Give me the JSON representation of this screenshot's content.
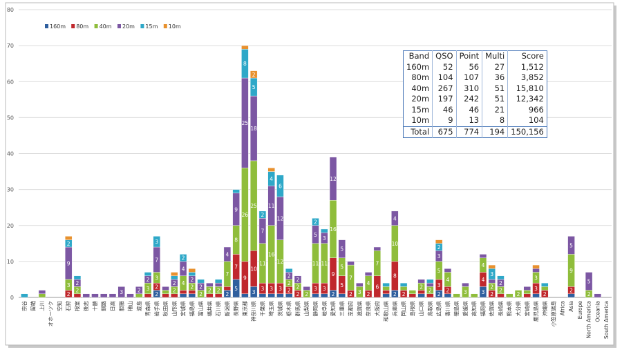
{
  "chart_data": {
    "type": "bar",
    "stacked": true,
    "ylim": [
      0,
      80
    ],
    "yticks": [
      0,
      10,
      20,
      30,
      40,
      50,
      60,
      70,
      80
    ],
    "grid": true,
    "legend_position": "top-left",
    "categories": [
      "宗谷",
      "留萌",
      "上川",
      "オホーツク",
      "空知",
      "石狩",
      "根室",
      "後志",
      "十勝",
      "釧路",
      "日高",
      "胆振",
      "檜山",
      "渡島",
      "青森県",
      "岩手県",
      "秋田県",
      "山形県",
      "宮城県",
      "福島県",
      "富山県",
      "福井県",
      "石川県",
      "新潟県",
      "長野県",
      "東京都",
      "神奈川県",
      "千葉県",
      "埼玉県",
      "茨城県",
      "栃木県",
      "群馬県",
      "山梨県",
      "静岡県",
      "岐阜県",
      "愛知県",
      "三重県",
      "京都府",
      "滋賀県",
      "奈良県",
      "大阪府",
      "和歌山県",
      "兵庫県",
      "岡山県",
      "島根県",
      "山口県",
      "鳥取県",
      "広島県",
      "香川県",
      "徳島県",
      "愛媛県",
      "高知県",
      "福岡県",
      "佐賀県",
      "長崎県",
      "熊本県",
      "大分県",
      "宮崎県",
      "鹿児島県",
      "沖縄県",
      "小笠原諸島",
      "Africa",
      "Asia",
      "Europe",
      "North America",
      "Oceania",
      "South America"
    ],
    "series": [
      {
        "name": "160m",
        "color": "#2f5f9e",
        "values": [
          0,
          0,
          0,
          0,
          0,
          0,
          0,
          0,
          0,
          0,
          0,
          0,
          0,
          0,
          0,
          2,
          0,
          0,
          1,
          1,
          0,
          0,
          0,
          2,
          5,
          1,
          3,
          1,
          1,
          1,
          1,
          0,
          0,
          1,
          1,
          2,
          1,
          0,
          0,
          0,
          0,
          1,
          2,
          0,
          0,
          1,
          0,
          2,
          1,
          0,
          0,
          0,
          3,
          0,
          0,
          0,
          0,
          0,
          1,
          0,
          0,
          0,
          1,
          0,
          0,
          0,
          0
        ]
      },
      {
        "name": "80m",
        "color": "#c0282d",
        "values": [
          0,
          0,
          0,
          0,
          0,
          2,
          1,
          0,
          0,
          0,
          0,
          0,
          0,
          0,
          1,
          2,
          1,
          1,
          1,
          1,
          0,
          1,
          1,
          1,
          7,
          9,
          10,
          3,
          3,
          3,
          2,
          2,
          0,
          3,
          3,
          9,
          5,
          2,
          0,
          2,
          6,
          1,
          8,
          2,
          1,
          1,
          1,
          3,
          2,
          0,
          0,
          0,
          4,
          2,
          1,
          0,
          0,
          1,
          3,
          2,
          0,
          0,
          2,
          0,
          0,
          0,
          0
        ]
      },
      {
        "name": "40m",
        "color": "#8fbd3b",
        "values": [
          0,
          0,
          1,
          0,
          0,
          3,
          2,
          0,
          0,
          0,
          0,
          0,
          0,
          1,
          3,
          3,
          1,
          2,
          4,
          2,
          2,
          2,
          2,
          7,
          8,
          26,
          25,
          11,
          16,
          12,
          2,
          2,
          2,
          11,
          11,
          16,
          5,
          7,
          3,
          4,
          7,
          1,
          10,
          1,
          1,
          2,
          2,
          5,
          4,
          1,
          3,
          1,
          4,
          2,
          2,
          1,
          2,
          1,
          3,
          1,
          0,
          0,
          9,
          0,
          2,
          0,
          0
        ]
      },
      {
        "name": "20m",
        "color": "#7c57a3",
        "values": [
          0,
          0,
          1,
          0,
          0,
          9,
          2,
          1,
          1,
          1,
          1,
          3,
          1,
          2,
          2,
          7,
          1,
          2,
          4,
          2,
          2,
          1,
          1,
          4,
          9,
          25,
          18,
          7,
          11,
          12,
          2,
          2,
          1,
          5,
          3,
          12,
          5,
          1,
          1,
          1,
          1,
          0,
          4,
          0,
          0,
          1,
          1,
          3,
          1,
          0,
          1,
          0,
          1,
          1,
          2,
          0,
          0,
          1,
          1,
          0,
          0,
          0,
          5,
          0,
          5,
          1,
          0
        ]
      },
      {
        "name": "15m",
        "color": "#2ea8c8",
        "values": [
          1,
          0,
          0,
          0,
          0,
          2,
          1,
          0,
          0,
          0,
          0,
          0,
          0,
          0,
          1,
          3,
          0,
          1,
          2,
          1,
          1,
          0,
          1,
          0,
          1,
          8,
          5,
          2,
          4,
          6,
          1,
          0,
          0,
          2,
          1,
          0,
          0,
          0,
          0,
          0,
          0,
          1,
          0,
          1,
          0,
          0,
          1,
          2,
          0,
          0,
          0,
          0,
          0,
          3,
          1,
          0,
          0,
          0,
          0,
          1,
          0,
          0,
          0,
          0,
          0,
          0,
          0
        ]
      },
      {
        "name": "10m",
        "color": "#e8912e",
        "values": [
          0,
          0,
          0,
          0,
          0,
          1,
          0,
          0,
          0,
          0,
          0,
          0,
          0,
          0,
          0,
          0,
          0,
          1,
          0,
          1,
          0,
          0,
          0,
          0,
          0,
          1,
          2,
          0,
          1,
          0,
          0,
          0,
          0,
          0,
          0,
          0,
          0,
          0,
          0,
          0,
          0,
          0,
          0,
          0,
          0,
          0,
          0,
          1,
          0,
          0,
          0,
          0,
          0,
          1,
          0,
          0,
          0,
          0,
          1,
          0,
          0,
          0,
          0,
          0,
          0,
          0,
          0
        ]
      }
    ]
  },
  "score_table": {
    "header": [
      "Band",
      "QSO",
      "Point",
      "Multi",
      "Score"
    ],
    "rows": [
      [
        "160m",
        "52",
        "56",
        "27",
        "1,512"
      ],
      [
        "80m",
        "104",
        "107",
        "36",
        "3,852"
      ],
      [
        "40m",
        "267",
        "310",
        "51",
        "15,810"
      ],
      [
        "20m",
        "197",
        "242",
        "51",
        "12,342"
      ],
      [
        "15m",
        "46",
        "46",
        "21",
        "966"
      ],
      [
        "10m",
        "9",
        "13",
        "8",
        "104"
      ]
    ],
    "total": [
      "Total",
      "675",
      "774",
      "194",
      "150,156"
    ]
  }
}
